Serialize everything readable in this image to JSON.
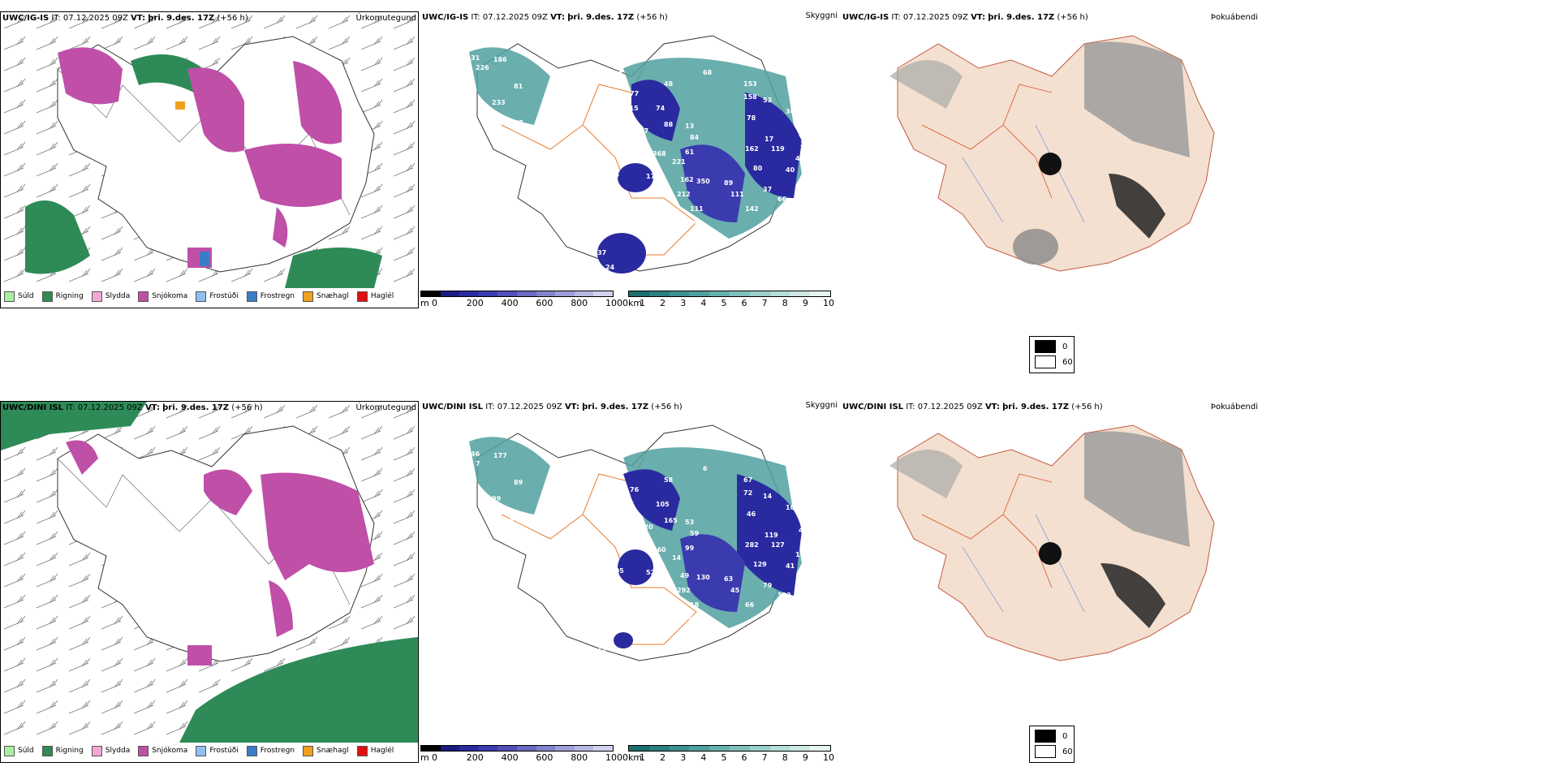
{
  "rows": [
    {
      "model": "UWC/IG-IS",
      "it_label": "IT:",
      "it_value": "07.12.2025 09Z",
      "vt_label": "VT:",
      "vt_value": "þri. 9.des. 17Z",
      "lead": "(+56 h)",
      "precip_title": "Úrkomutegund",
      "cloud_title": "Skyggni",
      "fog_title": "Þokuábendi",
      "visibility_labels": [
        {
          "v": "31"
        },
        {
          "v": "186"
        },
        {
          "v": "226"
        },
        {
          "v": "81"
        },
        {
          "v": "7"
        },
        {
          "v": "233"
        },
        {
          "v": "117"
        },
        {
          "v": "97"
        },
        {
          "v": "48"
        },
        {
          "v": "77"
        },
        {
          "v": "68"
        },
        {
          "v": "115"
        },
        {
          "v": "74"
        },
        {
          "v": "88"
        },
        {
          "v": "67"
        },
        {
          "v": "153"
        },
        {
          "v": "158"
        },
        {
          "v": "53"
        },
        {
          "v": "78"
        },
        {
          "v": "36"
        },
        {
          "v": "37"
        },
        {
          "v": "34"
        },
        {
          "v": "35"
        },
        {
          "v": "13"
        },
        {
          "v": "84"
        },
        {
          "v": "17"
        },
        {
          "v": "162"
        },
        {
          "v": "119"
        },
        {
          "v": "61"
        },
        {
          "v": "368"
        },
        {
          "v": "221"
        },
        {
          "v": "80"
        },
        {
          "v": "40"
        },
        {
          "v": "40"
        },
        {
          "v": "98"
        },
        {
          "v": "53"
        },
        {
          "v": "17"
        },
        {
          "v": "85"
        },
        {
          "v": "162"
        },
        {
          "v": "350"
        },
        {
          "v": "89"
        },
        {
          "v": "212"
        },
        {
          "v": "37"
        },
        {
          "v": "111"
        },
        {
          "v": "66"
        },
        {
          "v": "111"
        },
        {
          "v": "142"
        },
        {
          "v": "64"
        },
        {
          "v": "37"
        },
        {
          "v": "24"
        }
      ]
    },
    {
      "model": "UWC/DINI ISL",
      "it_label": "IT:",
      "it_value": "07.12.2025 09Z",
      "vt_label": "VT:",
      "vt_value": "þri. 9.des. 17Z",
      "lead": "(+56 h)",
      "precip_title": "Úrkomutegund",
      "cloud_title": "Skyggni",
      "fog_title": "Þokuábendi",
      "visibility_labels": [
        {
          "v": "46"
        },
        {
          "v": "177"
        },
        {
          "v": "7"
        },
        {
          "v": "89"
        },
        {
          "v": "75"
        },
        {
          "v": "99"
        },
        {
          "v": "49"
        },
        {
          "v": "54"
        },
        {
          "v": "58"
        },
        {
          "v": "76"
        },
        {
          "v": "6"
        },
        {
          "v": "88"
        },
        {
          "v": "105"
        },
        {
          "v": "165"
        },
        {
          "v": "120"
        },
        {
          "v": "67"
        },
        {
          "v": "72"
        },
        {
          "v": "14"
        },
        {
          "v": "46"
        },
        {
          "v": "100"
        },
        {
          "v": "73"
        },
        {
          "v": "46"
        },
        {
          "v": "43"
        },
        {
          "v": "53"
        },
        {
          "v": "59"
        },
        {
          "v": "119"
        },
        {
          "v": "282"
        },
        {
          "v": "127"
        },
        {
          "v": "99"
        },
        {
          "v": "260"
        },
        {
          "v": "14"
        },
        {
          "v": "129"
        },
        {
          "v": "115"
        },
        {
          "v": "41"
        },
        {
          "v": "49"
        },
        {
          "v": "105"
        },
        {
          "v": "52"
        },
        {
          "v": "6"
        },
        {
          "v": "49"
        },
        {
          "v": "130"
        },
        {
          "v": "63"
        },
        {
          "v": "292"
        },
        {
          "v": "79"
        },
        {
          "v": "45"
        },
        {
          "v": "103"
        },
        {
          "v": "18"
        },
        {
          "v": "66"
        },
        {
          "v": "63"
        },
        {
          "v": "73"
        }
      ]
    }
  ],
  "precip_legend": [
    {
      "label": "Súld",
      "color": "#a8f0a0"
    },
    {
      "label": "Rigning",
      "color": "#2e8b57"
    },
    {
      "label": "Slydda",
      "color": "#f4a6d7"
    },
    {
      "label": "Snjókoma",
      "color": "#c04fa8"
    },
    {
      "label": "Frostúði",
      "color": "#8fbfef"
    },
    {
      "label": "Frostregn",
      "color": "#3a7cc8"
    },
    {
      "label": "Snæhagl",
      "color": "#f0a020"
    },
    {
      "label": "Haglél",
      "color": "#e01010"
    }
  ],
  "ceiling_scale": {
    "unit": "m",
    "labels": [
      "0",
      "200",
      "400",
      "600",
      "800",
      "1000"
    ],
    "colors": [
      "#000000",
      "#1a1a80",
      "#2a2aa0",
      "#3b3bb0",
      "#5050b8",
      "#6a6ac0",
      "#8484cc",
      "#9e9ed8",
      "#b8b8e4",
      "#d2d2ef"
    ]
  },
  "visibility_scale": {
    "unit": "km",
    "labels": [
      "1",
      "2",
      "3",
      "4",
      "5",
      "6",
      "7",
      "8",
      "9",
      "10"
    ],
    "colors": [
      "#1c6e6e",
      "#2a8080",
      "#3d9090",
      "#50a0a0",
      "#66b0ae",
      "#80c0bc",
      "#9ad0ca",
      "#b4ded8",
      "#cee9e4",
      "#e6f4f1"
    ]
  },
  "fog_legend": [
    {
      "label": "0",
      "color": "#000000"
    },
    {
      "label": "60",
      "color": "#ffffff"
    }
  ],
  "colors": {
    "land_fog": "#f3e0d0",
    "roads": "#e87a2a",
    "rivers": "#6f8fe0",
    "outline": "#333333"
  }
}
